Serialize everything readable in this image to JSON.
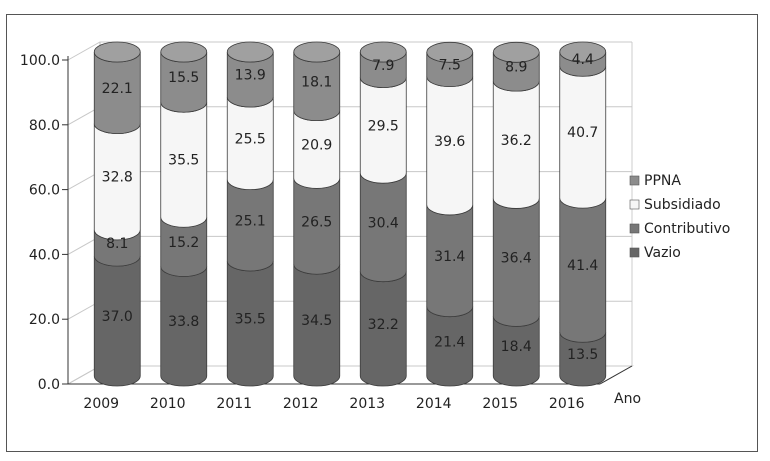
{
  "chart_data": {
    "type": "bar",
    "stacked": true,
    "style": "3d-cylinder",
    "categories": [
      "2009",
      "2010",
      "2011",
      "2012",
      "2013",
      "2014",
      "2015",
      "2016"
    ],
    "series": [
      {
        "name": "Vazio",
        "color": "#666666",
        "values": [
          37.0,
          33.8,
          35.5,
          34.5,
          32.2,
          21.4,
          18.4,
          13.5
        ]
      },
      {
        "name": "Contributivo",
        "color": "#777777",
        "values": [
          8.1,
          15.2,
          25.1,
          26.5,
          30.4,
          31.4,
          36.4,
          41.4
        ]
      },
      {
        "name": "Subsidiado",
        "color": "#f6f6f6",
        "values": [
          32.8,
          35.5,
          25.5,
          20.9,
          29.5,
          39.6,
          36.2,
          40.7
        ]
      },
      {
        "name": "PPNA",
        "color": "#8c8c8c",
        "values": [
          22.1,
          15.5,
          13.9,
          18.1,
          7.9,
          7.5,
          8.9,
          4.4
        ]
      }
    ],
    "legend_order": [
      "PPNA",
      "Subsidiado",
      "Contributivo",
      "Vazio"
    ],
    "legend_position": "right",
    "xlabel": "Ano",
    "ylabel": "",
    "ylim": [
      0,
      100
    ],
    "yticks": [
      "0.0",
      "20.0",
      "40.0",
      "60.0",
      "80.0",
      "100.0"
    ],
    "grid": true
  }
}
